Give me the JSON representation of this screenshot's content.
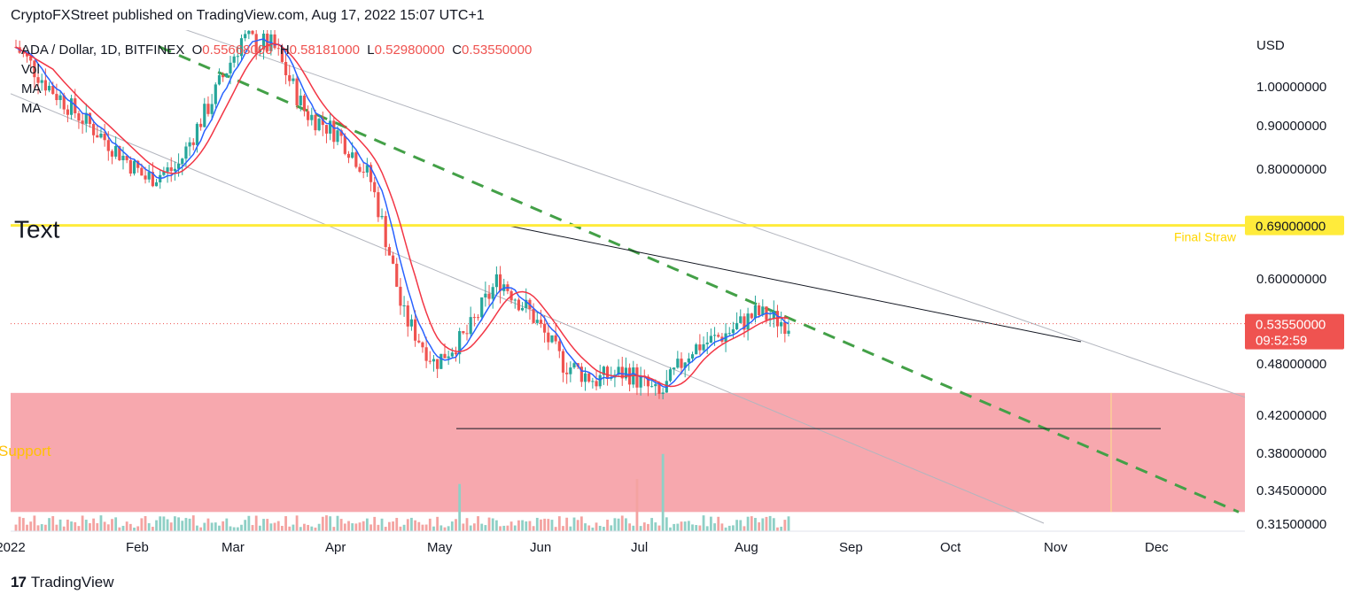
{
  "header": {
    "published_text": "CryptoFXStreet published on TradingView.com, Aug 17, 2022 15:07 UTC+1"
  },
  "legend": {
    "symbol": "ADA / Dollar, 1D, BITFINEX",
    "open_label": "O",
    "open": "0.55668000",
    "high_label": "H",
    "high": "0.58181000",
    "low_label": "L",
    "low": "0.52980000",
    "close_label": "C",
    "close": "0.53550000",
    "indicators": [
      "Vol",
      "MA",
      "MA"
    ]
  },
  "footer": {
    "brand": "TradingView",
    "logo_glyph": "17"
  },
  "colors": {
    "up": "#26a69a",
    "down": "#ef5350",
    "ma_fast": "#2962ff",
    "ma_slow": "#f23645",
    "zone": "#f7a8ae",
    "yellow_line": "#ffeb3b",
    "dashed_trend": "#43a047"
  },
  "chart_data": {
    "type": "candlestick",
    "currency": "USD",
    "y_ticks": [
      "1.00000000",
      "0.90000000",
      "0.80000000",
      "0.70000000",
      "0.60000000",
      "0.48000000",
      "0.42000000",
      "0.38000000",
      "0.34500000",
      "0.31500000"
    ],
    "x_ticks": [
      "2022",
      "Feb",
      "Mar",
      "Apr",
      "May",
      "Jun",
      "Jul",
      "Aug",
      "Sep",
      "Oct",
      "Nov",
      "Dec"
    ],
    "horizontal_level": {
      "value": 0.69,
      "label": "0.69000000",
      "annotation": "Final Straw"
    },
    "last_price": {
      "value": 0.5355,
      "label": "0.53550000",
      "countdown": "09:52:59"
    },
    "annotations": {
      "text_label": "Text",
      "zone_label": "Support"
    },
    "support_zone": {
      "top": 0.445,
      "bottom": 0.325
    },
    "series": [
      {
        "values_close_approx": [
          1.1,
          1.0,
          0.92,
          0.85,
          0.78,
          0.8,
          0.95,
          1.12,
          1.1,
          0.93,
          0.88,
          0.78,
          0.55,
          0.48,
          0.52,
          0.6,
          0.55,
          0.48,
          0.46,
          0.47,
          0.44,
          0.5,
          0.52,
          0.55,
          0.5355
        ]
      }
    ],
    "trendlines": [
      {
        "kind": "channel-upper",
        "from": [
          "Jan",
          1.3
        ],
        "to": [
          "Dec",
          0.44
        ]
      },
      {
        "kind": "channel-lower",
        "from": [
          "Jan",
          0.98
        ],
        "to": [
          "Nov",
          0.315
        ]
      },
      {
        "kind": "dashed-descending",
        "from": [
          "Jan",
          1.1
        ],
        "to": [
          "Dec",
          0.325
        ]
      },
      {
        "kind": "upper-resistance",
        "from": [
          "Jun",
          0.69
        ],
        "to": [
          "Nov",
          0.51
        ]
      },
      {
        "kind": "horizontal-support",
        "from": [
          "May",
          0.405
        ],
        "to": [
          "Dec",
          0.405
        ]
      }
    ]
  }
}
